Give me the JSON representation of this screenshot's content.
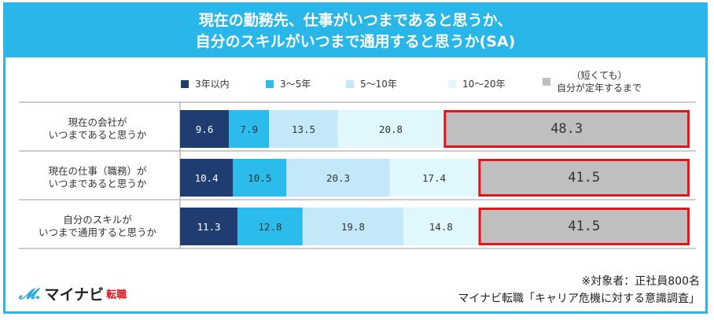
{
  "title": [
    "現在の勤務先、仕事がいつまであると思うか、",
    "自分のスキルがいつまで通用すると思うか(SA)"
  ],
  "chart_data": {
    "type": "bar",
    "stacked": true,
    "orientation": "horizontal",
    "categories": [
      [
        "現在の会社が",
        "いつまであると思うか"
      ],
      [
        "現在の仕事（職務）が",
        "いつまであると思うか"
      ],
      [
        "自分のスキルが",
        "いつまで通用すると思うか"
      ]
    ],
    "series": [
      {
        "name": "3年以内",
        "color": "#1f3d70",
        "values": [
          9.6,
          10.4,
          11.3
        ]
      },
      {
        "name": "3～5年",
        "color": "#2cbcec",
        "values": [
          7.9,
          10.5,
          12.8
        ]
      },
      {
        "name": "5～10年",
        "color": "#c3e8f8",
        "values": [
          13.5,
          20.3,
          19.8
        ]
      },
      {
        "name": "10～20年",
        "color": "#e0f8fb",
        "values": [
          20.8,
          17.4,
          14.8
        ]
      },
      {
        "name": "（短くても）自分が定年するまで",
        "name_lines": [
          "（短くても）",
          "自分が定年するまで"
        ],
        "color": "#bfbfbf",
        "values": [
          48.3,
          41.5,
          41.5
        ],
        "highlight": "#e3141b"
      }
    ],
    "xlim": [
      0,
      100
    ],
    "legend": "top"
  },
  "footer": {
    "logo_main": "マイナビ",
    "logo_sub": "転職",
    "note": "※対象者：正社員800名",
    "source": "マイナビ転職「キャリア危機に対する意識調査」"
  }
}
